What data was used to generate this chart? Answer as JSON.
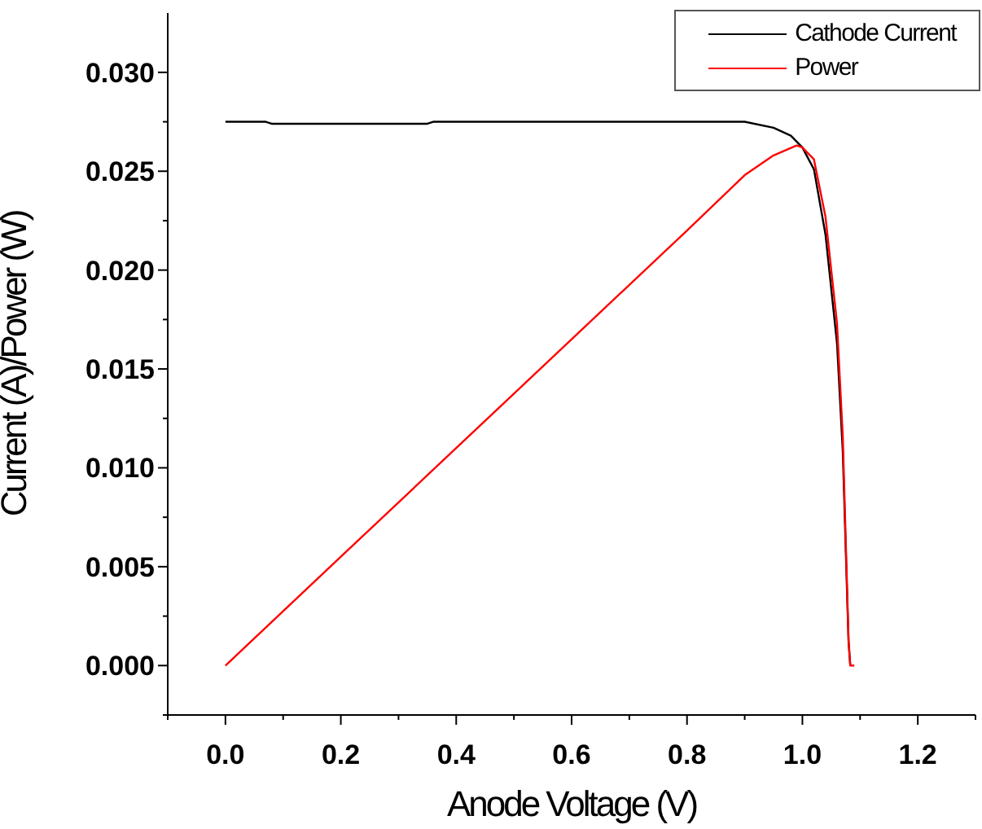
{
  "chart_data": {
    "type": "line",
    "xlabel": "Anode Voltage (V)",
    "ylabel": "Current (A)/Power (W)",
    "xlim": [
      -0.1,
      1.3
    ],
    "ylim": [
      -0.0025,
      0.033
    ],
    "xticks": [
      {
        "value": -0.1,
        "label": null
      },
      {
        "value": 0,
        "label": "0.0"
      },
      {
        "value": 0.1,
        "label": null
      },
      0.2,
      {
        "value": 0.3,
        "label": null
      },
      0.4,
      {
        "value": 0.5,
        "label": null
      },
      0.6,
      {
        "value": 0.7,
        "label": null
      },
      0.8,
      {
        "value": 0.9,
        "label": null
      },
      {
        "value": 1,
        "label": "1.0"
      },
      {
        "value": 1.1,
        "label": null
      },
      1.2,
      {
        "value": 1.3,
        "label": null
      }
    ],
    "yticks": [
      {
        "value": -0.0025,
        "label": null
      },
      {
        "value": 0,
        "label": "0.000"
      },
      {
        "value": 0.0025,
        "label": null
      },
      0.005,
      {
        "value": 0.0075,
        "label": null
      },
      {
        "value": 0.01,
        "label": "0.010"
      },
      {
        "value": 0.0125,
        "label": null
      },
      0.015,
      {
        "value": 0.0175,
        "label": null
      },
      {
        "value": 0.02,
        "label": "0.020"
      },
      {
        "value": 0.0225,
        "label": null
      },
      0.025,
      {
        "value": 0.0275,
        "label": null
      },
      {
        "value": 0.03,
        "label": "0.030"
      }
    ],
    "legend": "top right",
    "grid": false,
    "marker": "none",
    "line_style": "solid",
    "series": [
      {
        "name": "Cathode Current",
        "color": "#000000",
        "x": [
          0,
          0.07,
          0.08,
          0.35,
          0.36,
          0.8,
          0.9,
          0.95,
          0.98,
          1.0,
          1.02,
          1.04,
          1.06,
          1.07,
          1.08,
          1.083
        ],
        "values": [
          0.0275,
          0.0275,
          0.0274,
          0.0274,
          0.0275,
          0.0275,
          0.0275,
          0.0272,
          0.0268,
          0.0262,
          0.0251,
          0.0218,
          0.0163,
          0.0108,
          0.0012,
          0
        ]
      },
      {
        "name": "Power",
        "color": "#ff0000",
        "x": [
          0,
          0.2,
          0.4,
          0.6,
          0.8,
          0.9,
          0.95,
          0.99,
          1.0,
          1.02,
          1.04,
          1.06,
          1.07,
          1.08,
          1.083,
          1.09
        ],
        "values": [
          0,
          0.0055,
          0.011,
          0.0165,
          0.022,
          0.0248,
          0.0258,
          0.0263,
          0.0262,
          0.0256,
          0.0227,
          0.0173,
          0.0116,
          0.0013,
          0,
          0
        ]
      }
    ]
  }
}
